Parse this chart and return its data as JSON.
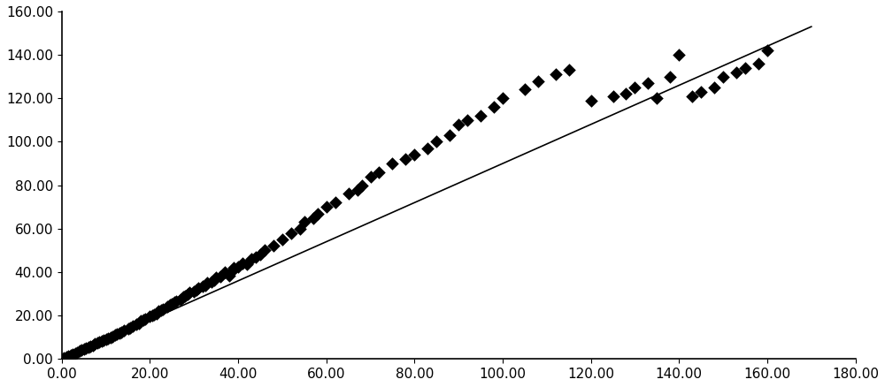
{
  "scatter_x": [
    0.5,
    1.0,
    1.5,
    2.0,
    2.5,
    3.0,
    3.5,
    4.0,
    4.5,
    5.0,
    5.5,
    6.0,
    6.5,
    7.0,
    7.5,
    8.0,
    8.5,
    9.0,
    9.5,
    10.0,
    10.5,
    11.0,
    11.5,
    12.0,
    12.5,
    13.0,
    13.5,
    14.0,
    15.0,
    15.5,
    16.0,
    17.0,
    17.5,
    18.0,
    18.5,
    19.0,
    20.0,
    20.5,
    21.0,
    21.5,
    22.0,
    22.5,
    23.0,
    24.0,
    24.5,
    25.0,
    25.5,
    26.0,
    27.0,
    27.5,
    28.0,
    28.5,
    29.0,
    30.0,
    30.5,
    31.0,
    32.0,
    32.5,
    33.0,
    34.0,
    34.5,
    35.0,
    36.0,
    37.0,
    38.0,
    38.5,
    39.0,
    40.0,
    41.0,
    42.0,
    43.0,
    44.0,
    45.0,
    46.0,
    48.0,
    50.0,
    52.0,
    54.0,
    55.0,
    57.0,
    58.0,
    60.0,
    62.0,
    65.0,
    67.0,
    68.0,
    70.0,
    72.0,
    75.0,
    78.0,
    80.0,
    83.0,
    85.0,
    88.0,
    90.0,
    92.0,
    95.0,
    98.0,
    100.0,
    105.0,
    108.0,
    112.0,
    115.0,
    120.0,
    125.0,
    128.0,
    130.0,
    133.0,
    135.0,
    138.0,
    140.0,
    143.0,
    145.0,
    148.0,
    150.0,
    153.0,
    155.0,
    158.0,
    160.0
  ],
  "scatter_y": [
    0.4,
    0.9,
    1.3,
    1.8,
    2.2,
    2.7,
    3.1,
    3.6,
    4.0,
    4.5,
    5.0,
    5.5,
    5.9,
    6.4,
    6.9,
    7.3,
    7.8,
    8.2,
    8.7,
    9.1,
    9.6,
    10.0,
    10.5,
    11.0,
    11.5,
    12.0,
    12.5,
    13.0,
    14.0,
    14.5,
    15.0,
    16.0,
    16.5,
    17.5,
    18.0,
    18.5,
    19.5,
    20.0,
    20.5,
    21.0,
    22.0,
    22.5,
    23.0,
    24.0,
    25.0,
    25.5,
    26.0,
    26.5,
    27.5,
    28.5,
    29.0,
    30.0,
    30.5,
    31.0,
    32.0,
    32.5,
    33.5,
    34.0,
    35.0,
    35.5,
    36.5,
    37.5,
    38.0,
    40.0,
    38.5,
    40.5,
    42.0,
    42.5,
    44.0,
    43.5,
    46.0,
    47.0,
    48.0,
    50.0,
    52.0,
    55.0,
    58.0,
    60.0,
    63.0,
    65.0,
    67.0,
    70.0,
    72.0,
    76.0,
    78.0,
    80.0,
    84.0,
    86.0,
    90.0,
    92.0,
    94.0,
    97.0,
    100.0,
    103.0,
    108.0,
    110.0,
    112.0,
    116.0,
    120.0,
    124.0,
    128.0,
    131.0,
    133.0,
    119.0,
    121.0,
    122.0,
    125.0,
    127.0,
    120.0,
    130.0,
    140.0,
    121.0,
    123.0,
    125.0,
    130.0,
    132.0,
    134.0,
    136.0,
    142.0
  ],
  "trend_x": [
    0.0,
    170.0
  ],
  "trend_y": [
    0.0,
    153.0
  ],
  "xlim": [
    0.0,
    180.0
  ],
  "ylim": [
    0.0,
    160.0
  ],
  "xticks": [
    0.0,
    20.0,
    40.0,
    60.0,
    80.0,
    100.0,
    120.0,
    140.0,
    160.0,
    180.0
  ],
  "yticks": [
    0.0,
    20.0,
    40.0,
    60.0,
    80.0,
    100.0,
    120.0,
    140.0,
    160.0
  ],
  "marker_color": "#000000",
  "line_color": "#000000",
  "bg_color": "#ffffff",
  "marker_size": 55,
  "tick_fontsize": 11
}
